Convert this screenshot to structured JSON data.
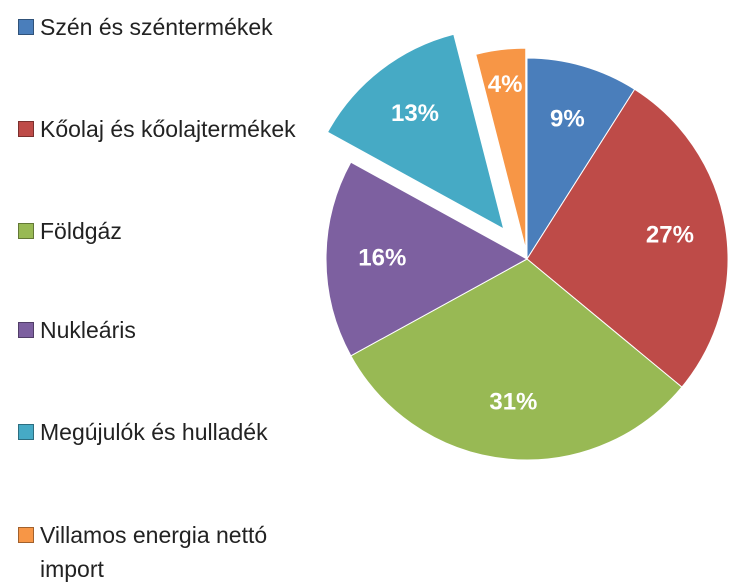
{
  "chart_data": {
    "type": "pie",
    "categories": [
      "Szén és széntermékek",
      "Kőolaj és kőolajtermékek",
      "Földgáz",
      "Nukleáris",
      "Megújulók és hulladék",
      "Villamos energia nettó import"
    ],
    "values": [
      9,
      27,
      31,
      16,
      13,
      4
    ],
    "value_labels": [
      "9%",
      "27%",
      "31%",
      "16%",
      "13%",
      "4%"
    ],
    "colors": [
      "#4a7ebb",
      "#be4b48",
      "#98b954",
      "#7d60a0",
      "#46aac5",
      "#f79646"
    ],
    "legend": "left"
  }
}
